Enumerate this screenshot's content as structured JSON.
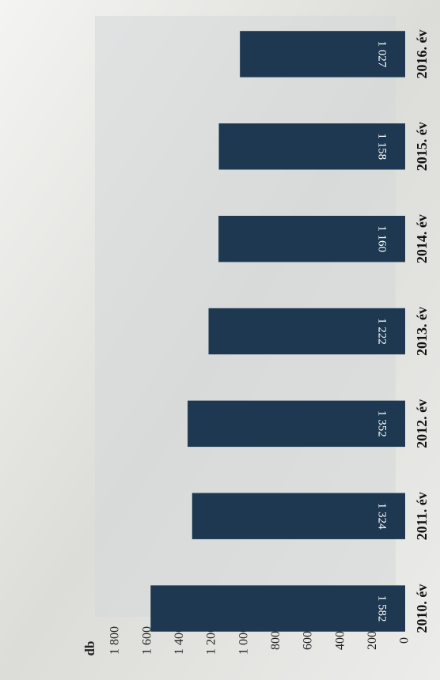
{
  "chart_data": {
    "type": "bar",
    "y_label": "db",
    "categories": [
      "2010. év",
      "2011. év",
      "2012. év",
      "2013. év",
      "2014. év",
      "2015. év",
      "2016. év"
    ],
    "values": [
      1582,
      1324,
      1352,
      1222,
      1160,
      1158,
      1027
    ],
    "value_labels": [
      "1 582",
      "1 324",
      "1 352",
      "1 222",
      "1 160",
      "1 158",
      "1 027"
    ],
    "color": "#1d3850",
    "ylim": [
      0,
      1800
    ],
    "yticks": [
      0,
      200,
      400,
      600,
      800,
      {
        "value": 1000,
        "label": "1 000"
      },
      {
        "value": 1200,
        "label": "1 200"
      },
      {
        "value": 1400,
        "label": "1 400"
      },
      {
        "value": 1600,
        "label": "1 600"
      },
      {
        "value": 1800,
        "label": "1 800"
      }
    ]
  }
}
